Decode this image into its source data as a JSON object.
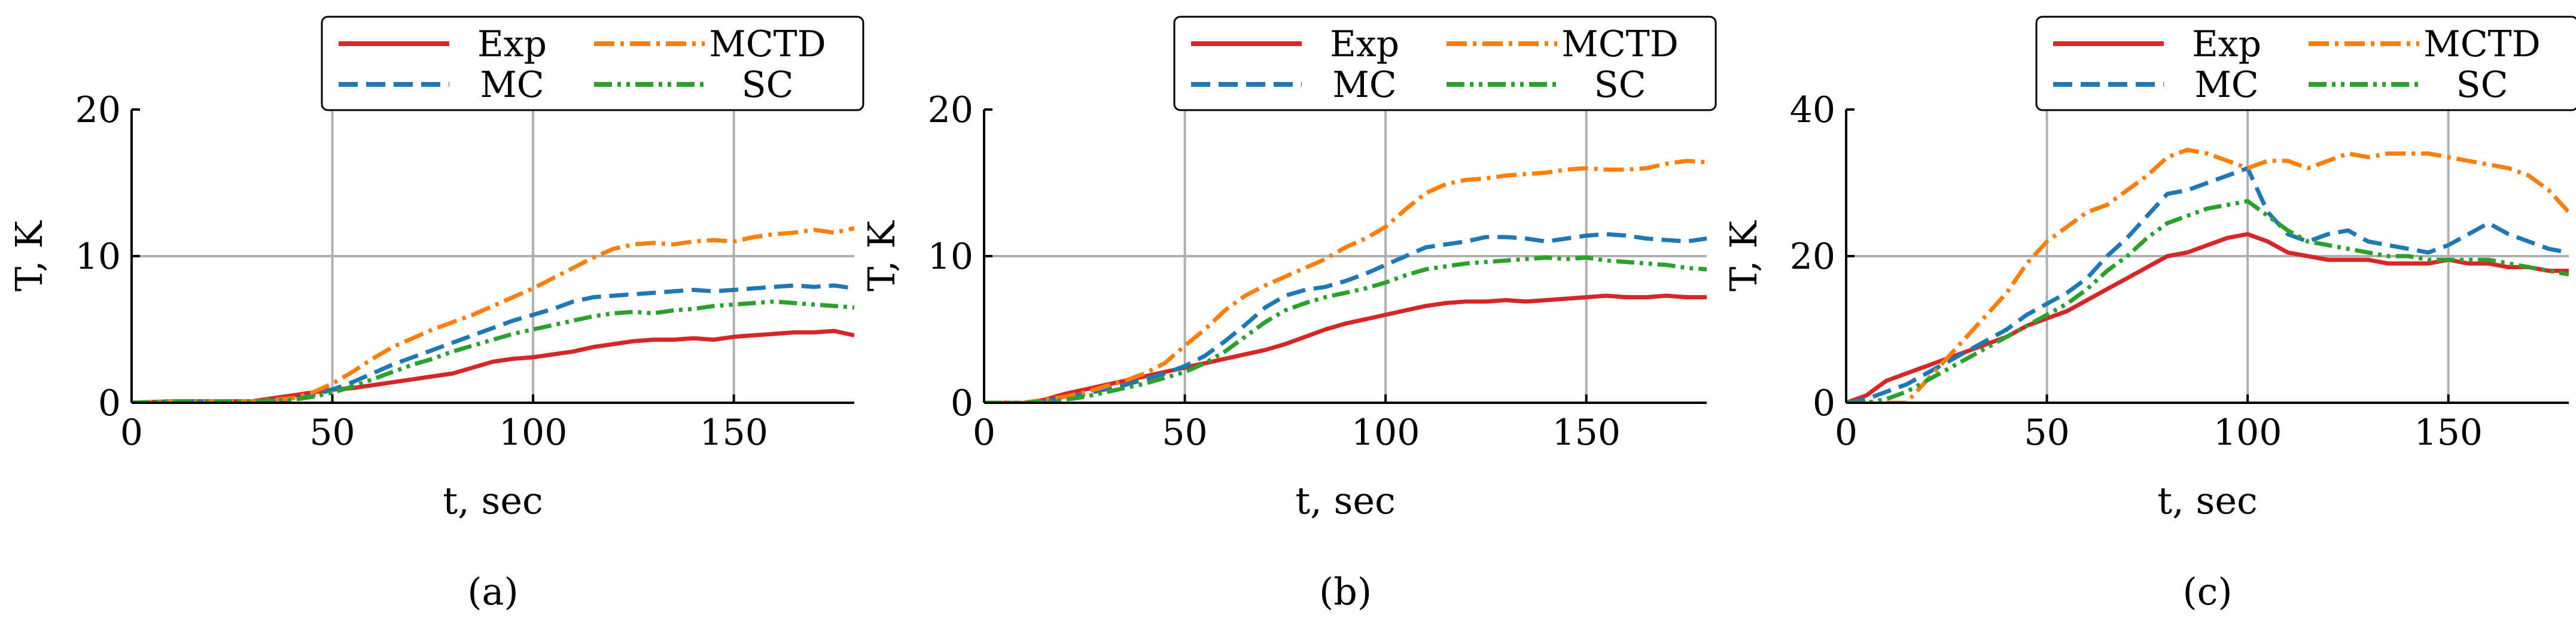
{
  "chart_data": [
    {
      "type": "line",
      "panel_label": "(a)",
      "xlabel": "t, sec",
      "ylabel": "T, K",
      "xlim": [
        0,
        180
      ],
      "ylim": [
        0,
        20
      ],
      "xticks": [
        0,
        50,
        100,
        150
      ],
      "yticks": [
        0,
        10,
        20
      ],
      "grid": true,
      "legend_position": "top",
      "series": [
        {
          "name": "Exp",
          "color": "#d62728",
          "dash": "solid",
          "x": [
            0,
            10,
            20,
            30,
            35,
            40,
            45,
            50,
            55,
            60,
            65,
            70,
            75,
            80,
            85,
            90,
            95,
            100,
            105,
            110,
            115,
            120,
            125,
            130,
            135,
            140,
            145,
            150,
            155,
            160,
            165,
            170,
            175,
            180
          ],
          "y": [
            0,
            0.1,
            0.1,
            0.1,
            0.3,
            0.5,
            0.7,
            0.9,
            1.0,
            1.2,
            1.4,
            1.6,
            1.8,
            2.0,
            2.4,
            2.8,
            3.0,
            3.1,
            3.3,
            3.5,
            3.8,
            4.0,
            4.2,
            4.3,
            4.3,
            4.4,
            4.3,
            4.5,
            4.6,
            4.7,
            4.8,
            4.8,
            4.9,
            4.6
          ]
        },
        {
          "name": "MC",
          "color": "#1f77b4",
          "dash": "dashed",
          "x": [
            0,
            10,
            20,
            30,
            40,
            45,
            50,
            55,
            60,
            65,
            70,
            75,
            80,
            85,
            90,
            95,
            100,
            105,
            110,
            115,
            120,
            125,
            130,
            135,
            140,
            145,
            150,
            155,
            160,
            165,
            170,
            175,
            180
          ],
          "y": [
            0,
            0.1,
            0.1,
            0.1,
            0.2,
            0.5,
            0.9,
            1.4,
            2.0,
            2.6,
            3.1,
            3.6,
            4.1,
            4.6,
            5.1,
            5.6,
            6.0,
            6.4,
            6.9,
            7.2,
            7.3,
            7.4,
            7.5,
            7.6,
            7.7,
            7.6,
            7.7,
            7.8,
            7.9,
            8.0,
            7.9,
            8.0,
            7.8
          ]
        },
        {
          "name": "MCTD",
          "color": "#ff7f0e",
          "dash": "dashdot",
          "x": [
            0,
            10,
            20,
            30,
            40,
            45,
            50,
            55,
            60,
            65,
            70,
            75,
            80,
            85,
            90,
            95,
            100,
            105,
            110,
            115,
            120,
            125,
            130,
            135,
            140,
            145,
            150,
            155,
            160,
            165,
            170,
            175,
            180
          ],
          "y": [
            0,
            0.1,
            0.1,
            0.1,
            0.3,
            0.7,
            1.3,
            2.1,
            3.0,
            3.8,
            4.4,
            5.0,
            5.5,
            6.0,
            6.6,
            7.2,
            7.8,
            8.5,
            9.2,
            9.9,
            10.5,
            10.8,
            10.9,
            10.8,
            11.0,
            11.1,
            11.0,
            11.3,
            11.5,
            11.6,
            11.8,
            11.6,
            11.9
          ]
        },
        {
          "name": "SC",
          "color": "#2ca02c",
          "dash": "dashdotdot",
          "x": [
            0,
            10,
            20,
            30,
            40,
            45,
            50,
            55,
            60,
            65,
            70,
            75,
            80,
            85,
            90,
            95,
            100,
            105,
            110,
            115,
            120,
            125,
            130,
            135,
            140,
            145,
            150,
            155,
            160,
            165,
            170,
            175,
            180
          ],
          "y": [
            0,
            0.1,
            0.1,
            0.1,
            0.2,
            0.4,
            0.7,
            1.1,
            1.6,
            2.1,
            2.6,
            3.0,
            3.5,
            3.9,
            4.3,
            4.7,
            5.0,
            5.3,
            5.6,
            5.9,
            6.1,
            6.2,
            6.1,
            6.3,
            6.4,
            6.6,
            6.7,
            6.8,
            6.9,
            6.8,
            6.7,
            6.6,
            6.5
          ]
        }
      ]
    },
    {
      "type": "line",
      "panel_label": "(b)",
      "xlabel": "t, sec",
      "ylabel": "T, K",
      "xlim": [
        0,
        180
      ],
      "ylim": [
        0,
        20
      ],
      "xticks": [
        0,
        50,
        100,
        150
      ],
      "yticks": [
        0,
        10,
        20
      ],
      "grid": true,
      "legend_position": "top",
      "series": [
        {
          "name": "Exp",
          "color": "#d62728",
          "dash": "solid",
          "x": [
            0,
            10,
            15,
            20,
            25,
            30,
            35,
            40,
            45,
            50,
            55,
            60,
            65,
            70,
            75,
            80,
            85,
            90,
            95,
            100,
            105,
            110,
            115,
            120,
            125,
            130,
            135,
            140,
            145,
            150,
            155,
            160,
            165,
            170,
            175,
            180
          ],
          "y": [
            0,
            0,
            0.2,
            0.6,
            0.9,
            1.2,
            1.5,
            1.8,
            2.1,
            2.4,
            2.7,
            3.0,
            3.3,
            3.6,
            4.0,
            4.5,
            5.0,
            5.4,
            5.7,
            6.0,
            6.3,
            6.6,
            6.8,
            6.9,
            6.9,
            7.0,
            6.9,
            7.0,
            7.1,
            7.2,
            7.3,
            7.2,
            7.2,
            7.3,
            7.2,
            7.2
          ]
        },
        {
          "name": "MC",
          "color": "#1f77b4",
          "dash": "dashed",
          "x": [
            0,
            10,
            15,
            20,
            25,
            30,
            35,
            40,
            45,
            50,
            55,
            60,
            65,
            70,
            75,
            80,
            85,
            90,
            95,
            100,
            105,
            110,
            115,
            120,
            125,
            130,
            135,
            140,
            145,
            150,
            155,
            160,
            165,
            170,
            175,
            180
          ],
          "y": [
            0,
            0,
            0.1,
            0.3,
            0.6,
            0.9,
            1.2,
            1.6,
            2.0,
            2.5,
            3.2,
            4.2,
            5.3,
            6.5,
            7.3,
            7.7,
            7.9,
            8.3,
            8.8,
            9.4,
            10.0,
            10.6,
            10.8,
            11.0,
            11.3,
            11.3,
            11.2,
            11.0,
            11.2,
            11.4,
            11.5,
            11.4,
            11.2,
            11.1,
            11.0,
            11.2
          ]
        },
        {
          "name": "MCTD",
          "color": "#ff7f0e",
          "dash": "dashdot",
          "x": [
            0,
            10,
            15,
            20,
            25,
            30,
            35,
            40,
            45,
            50,
            55,
            60,
            65,
            70,
            75,
            80,
            85,
            90,
            95,
            100,
            105,
            110,
            115,
            120,
            125,
            130,
            135,
            140,
            145,
            150,
            155,
            160,
            165,
            170,
            175,
            180
          ],
          "y": [
            0,
            0,
            0.2,
            0.4,
            0.7,
            1.1,
            1.5,
            2.0,
            2.7,
            3.9,
            5.0,
            6.3,
            7.3,
            8.0,
            8.6,
            9.2,
            9.8,
            10.6,
            11.2,
            12.0,
            13.2,
            14.3,
            14.9,
            15.2,
            15.3,
            15.5,
            15.6,
            15.7,
            15.9,
            16.0,
            15.9,
            15.9,
            16.0,
            16.3,
            16.5,
            16.4
          ]
        },
        {
          "name": "SC",
          "color": "#2ca02c",
          "dash": "dashdotdot",
          "x": [
            0,
            10,
            15,
            20,
            25,
            30,
            35,
            40,
            45,
            50,
            55,
            60,
            65,
            70,
            75,
            80,
            85,
            90,
            95,
            100,
            105,
            110,
            115,
            120,
            125,
            130,
            135,
            140,
            145,
            150,
            155,
            160,
            165,
            170,
            175,
            180
          ],
          "y": [
            0,
            0,
            0.1,
            0.2,
            0.4,
            0.7,
            1.0,
            1.3,
            1.7,
            2.1,
            2.7,
            3.5,
            4.5,
            5.5,
            6.3,
            6.8,
            7.2,
            7.5,
            7.8,
            8.2,
            8.7,
            9.1,
            9.3,
            9.5,
            9.6,
            9.7,
            9.8,
            9.9,
            9.8,
            9.9,
            9.7,
            9.6,
            9.5,
            9.4,
            9.2,
            9.1
          ]
        }
      ]
    },
    {
      "type": "line",
      "panel_label": "(c)",
      "xlabel": "t, sec",
      "ylabel": "T, K",
      "xlim": [
        0,
        180
      ],
      "ylim": [
        0,
        40
      ],
      "xticks": [
        0,
        50,
        100,
        150
      ],
      "yticks": [
        0,
        20,
        40
      ],
      "grid": true,
      "legend_position": "top",
      "series": [
        {
          "name": "Exp",
          "color": "#d62728",
          "dash": "solid",
          "x": [
            0,
            5,
            10,
            15,
            20,
            25,
            30,
            35,
            40,
            45,
            50,
            55,
            60,
            65,
            70,
            75,
            80,
            85,
            90,
            95,
            100,
            105,
            110,
            115,
            120,
            125,
            130,
            135,
            140,
            145,
            150,
            155,
            160,
            165,
            170,
            175,
            180
          ],
          "y": [
            0,
            1,
            3,
            4,
            5,
            6,
            7,
            8,
            9,
            10.5,
            11.5,
            12.5,
            14,
            15.5,
            17,
            18.5,
            20,
            20.5,
            21.5,
            22.5,
            23,
            22,
            20.5,
            20,
            19.5,
            19.5,
            19.5,
            19,
            19,
            19,
            19.5,
            19,
            19,
            18.5,
            18.5,
            18,
            18
          ]
        },
        {
          "name": "MC",
          "color": "#1f77b4",
          "dash": "dashed",
          "x": [
            0,
            5,
            10,
            15,
            20,
            25,
            30,
            35,
            40,
            45,
            50,
            55,
            60,
            65,
            70,
            75,
            80,
            85,
            90,
            95,
            100,
            105,
            110,
            115,
            120,
            125,
            130,
            135,
            140,
            145,
            150,
            155,
            160,
            165,
            170,
            175,
            180
          ],
          "y": [
            0,
            0.5,
            1.5,
            2.5,
            4,
            5.5,
            7,
            8.5,
            10,
            12,
            13.5,
            15,
            17,
            20,
            22.5,
            25.5,
            28.5,
            29,
            30,
            31,
            32,
            26,
            23,
            22,
            23,
            23.5,
            22,
            21.5,
            21,
            20.5,
            21.5,
            23,
            24.5,
            23,
            22,
            21,
            20.5
          ]
        },
        {
          "name": "MCTD",
          "color": "#ff7f0e",
          "dash": "dashdot",
          "x": [
            10,
            15,
            20,
            25,
            30,
            35,
            40,
            45,
            50,
            55,
            60,
            65,
            70,
            75,
            80,
            85,
            90,
            95,
            100,
            105,
            110,
            115,
            120,
            125,
            130,
            135,
            140,
            145,
            150,
            155,
            160,
            165,
            170,
            175,
            180
          ],
          "y": [
            0,
            0,
            3,
            6,
            9,
            12,
            15,
            19,
            22,
            24,
            26,
            27,
            29,
            31,
            33.5,
            34.5,
            34,
            33,
            32,
            33,
            33,
            32,
            33,
            34,
            33.5,
            34,
            34,
            34,
            33.5,
            33,
            32.5,
            32,
            31,
            29,
            26
          ]
        },
        {
          "name": "SC",
          "color": "#2ca02c",
          "dash": "dashdotdot",
          "x": [
            0,
            5,
            10,
            15,
            20,
            25,
            30,
            35,
            40,
            45,
            50,
            55,
            60,
            65,
            70,
            75,
            80,
            85,
            90,
            95,
            100,
            105,
            110,
            115,
            120,
            125,
            130,
            135,
            140,
            145,
            150,
            155,
            160,
            165,
            170,
            175,
            180
          ],
          "y": [
            0,
            0,
            0.5,
            1.5,
            3,
            4.5,
            6,
            7.5,
            9,
            10.5,
            12,
            13.5,
            15.5,
            18,
            20,
            22.5,
            24.5,
            25.5,
            26.5,
            27,
            27.5,
            25.5,
            23.5,
            22,
            21.5,
            21,
            20.5,
            20,
            20,
            19.5,
            19.5,
            19.5,
            19.5,
            19,
            18.5,
            18,
            17.5
          ]
        }
      ]
    }
  ]
}
